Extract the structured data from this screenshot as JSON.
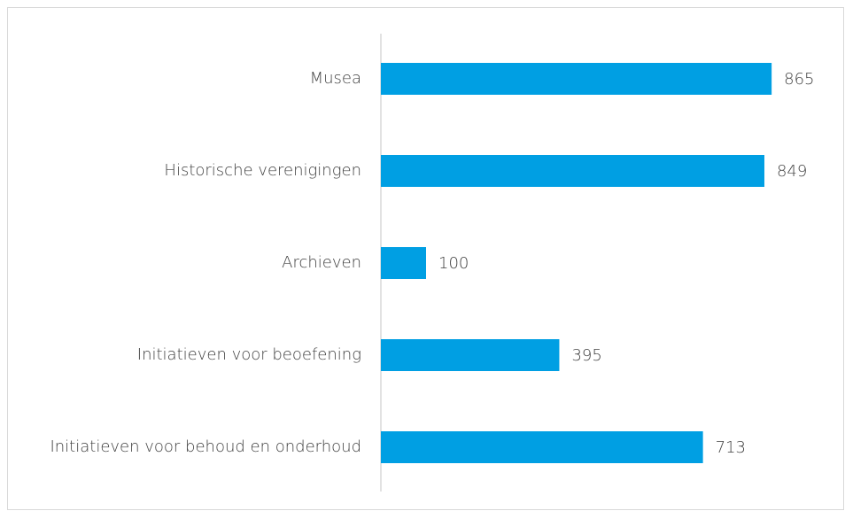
{
  "chart_data": {
    "type": "barh",
    "categories": [
      "Musea",
      "Historische verenigingen",
      "Archieven",
      "Initiatieven voor beoefening",
      "Initiatieven voor behoud en onderhoud"
    ],
    "values": [
      865,
      849,
      100,
      395,
      713
    ],
    "color": "#009fe3",
    "xlim": [
      0,
      1000
    ]
  }
}
